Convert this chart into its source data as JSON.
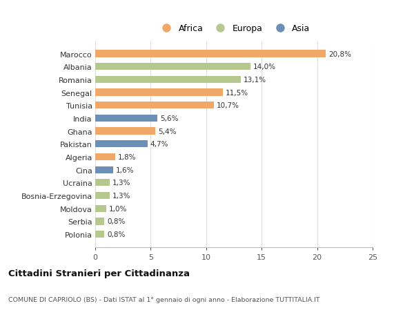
{
  "countries": [
    "Marocco",
    "Albania",
    "Romania",
    "Senegal",
    "Tunisia",
    "India",
    "Ghana",
    "Pakistan",
    "Algeria",
    "Cina",
    "Ucraina",
    "Bosnia-Erzegovina",
    "Moldova",
    "Serbia",
    "Polonia"
  ],
  "values": [
    20.8,
    14.0,
    13.1,
    11.5,
    10.7,
    5.6,
    5.4,
    4.7,
    1.8,
    1.6,
    1.3,
    1.3,
    1.0,
    0.8,
    0.8
  ],
  "labels": [
    "20,8%",
    "14,0%",
    "13,1%",
    "11,5%",
    "10,7%",
    "5,6%",
    "5,4%",
    "4,7%",
    "1,8%",
    "1,6%",
    "1,3%",
    "1,3%",
    "1,0%",
    "0,8%",
    "0,8%"
  ],
  "continents": [
    "Africa",
    "Europa",
    "Europa",
    "Africa",
    "Africa",
    "Asia",
    "Africa",
    "Asia",
    "Africa",
    "Asia",
    "Europa",
    "Europa",
    "Europa",
    "Europa",
    "Europa"
  ],
  "colors": {
    "Africa": "#F0A868",
    "Europa": "#B5C98E",
    "Asia": "#6B8FB5"
  },
  "legend_labels": [
    "Africa",
    "Europa",
    "Asia"
  ],
  "xlim": [
    0,
    25
  ],
  "xticks": [
    0,
    5,
    10,
    15,
    20,
    25
  ],
  "title1": "Cittadini Stranieri per Cittadinanza",
  "title2": "COMUNE DI CAPRIOLO (BS) - Dati ISTAT al 1° gennaio di ogni anno - Elaborazione TUTTITALIA.IT",
  "background_color": "#ffffff",
  "plot_bg_color": "#ffffff",
  "grid_color": "#e0e0e0"
}
